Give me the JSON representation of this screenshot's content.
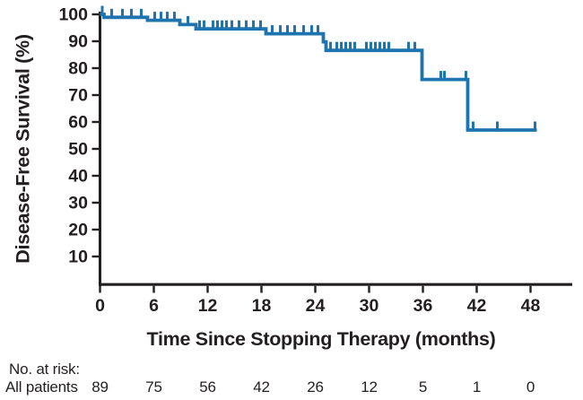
{
  "chart_data": {
    "type": "line",
    "subtype": "kaplan_meier_step_curve",
    "title": "",
    "xlabel": "Time Since Stopping Therapy (months)",
    "ylabel": "Disease-Free Survival (%)",
    "x_ticks": [
      0,
      6,
      12,
      18,
      24,
      30,
      36,
      42,
      48
    ],
    "y_ticks": [
      10,
      20,
      30,
      40,
      50,
      60,
      70,
      80,
      90,
      100
    ],
    "xlim": [
      0,
      52.6
    ],
    "ylim": [
      0,
      105
    ],
    "grid": false,
    "legend": false,
    "line_color": "#1d74ae",
    "ink_color": "#231f20",
    "series": [
      {
        "name": "All patients",
        "steps": [
          [
            0,
            100
          ],
          [
            0.45,
            98.9
          ],
          [
            5.3,
            97.8
          ],
          [
            8.9,
            96.2
          ],
          [
            10.7,
            94.6
          ],
          [
            18.5,
            92.8
          ],
          [
            24.9,
            89.8
          ],
          [
            25.2,
            86.6
          ],
          [
            35.9,
            75.8
          ],
          [
            41.0,
            57.0
          ]
        ],
        "end_time": 48.7,
        "censor_marks": [
          [
            0.25,
            100
          ],
          [
            1.3,
            98.9
          ],
          [
            2.5,
            98.9
          ],
          [
            3.5,
            98.9
          ],
          [
            4.6,
            98.9
          ],
          [
            6.1,
            97.8
          ],
          [
            6.8,
            97.8
          ],
          [
            7.5,
            97.8
          ],
          [
            8.3,
            97.8
          ],
          [
            9.8,
            96.2
          ],
          [
            11.1,
            94.6
          ],
          [
            11.6,
            94.6
          ],
          [
            12.6,
            94.6
          ],
          [
            13.1,
            94.6
          ],
          [
            13.6,
            94.6
          ],
          [
            14.1,
            94.6
          ],
          [
            14.7,
            94.6
          ],
          [
            15.5,
            94.6
          ],
          [
            16.3,
            94.6
          ],
          [
            17.1,
            94.6
          ],
          [
            17.9,
            94.6
          ],
          [
            19.2,
            92.8
          ],
          [
            20.1,
            92.8
          ],
          [
            20.9,
            92.8
          ],
          [
            21.7,
            92.8
          ],
          [
            22.7,
            92.8
          ],
          [
            23.6,
            92.8
          ],
          [
            24.3,
            92.8
          ],
          [
            25.7,
            86.6
          ],
          [
            26.4,
            86.6
          ],
          [
            26.9,
            86.6
          ],
          [
            27.4,
            86.6
          ],
          [
            27.9,
            86.6
          ],
          [
            28.4,
            86.6
          ],
          [
            29.7,
            86.6
          ],
          [
            30.2,
            86.6
          ],
          [
            30.7,
            86.6
          ],
          [
            31.2,
            86.6
          ],
          [
            31.7,
            86.6
          ],
          [
            32.2,
            86.6
          ],
          [
            34.4,
            86.6
          ],
          [
            35.1,
            86.6
          ],
          [
            38.0,
            75.8
          ],
          [
            38.4,
            75.8
          ],
          [
            40.8,
            75.8
          ],
          [
            41.6,
            57.0
          ],
          [
            44.3,
            57.0
          ],
          [
            48.5,
            57.0
          ]
        ]
      }
    ],
    "at_risk": {
      "label": "No. at risk:",
      "times": [
        0,
        6,
        12,
        18,
        24,
        30,
        36,
        42,
        48
      ],
      "rows": [
        {
          "name": "All patients",
          "values": [
            89,
            75,
            56,
            42,
            26,
            12,
            5,
            1,
            0
          ]
        }
      ]
    }
  }
}
